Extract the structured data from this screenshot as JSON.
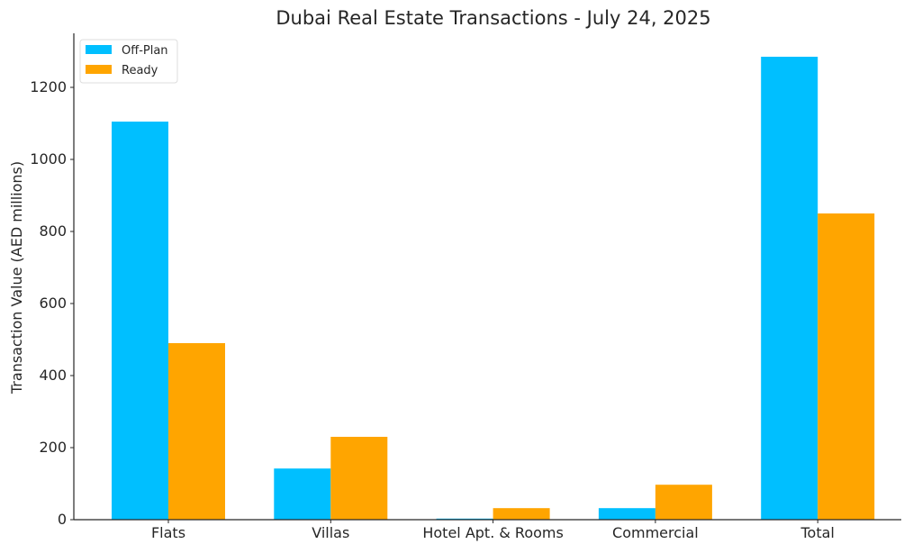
{
  "chart_data": {
    "type": "bar",
    "title": "Dubai Real Estate Transactions - July 24, 2025",
    "xlabel": "",
    "ylabel": "Transaction Value (AED millions)",
    "categories": [
      "Flats",
      "Villas",
      "Hotel Apt. & Rooms",
      "Commercial",
      "Total"
    ],
    "series": [
      {
        "name": "Off-Plan",
        "color": "#00BFFF",
        "values": [
          1105,
          142,
          3,
          32,
          1285
        ]
      },
      {
        "name": "Ready",
        "color": "#FFA500",
        "values": [
          490,
          230,
          32,
          97,
          850
        ]
      }
    ],
    "ylim": [
      0,
      1340
    ],
    "yticks": [
      0,
      200,
      400,
      600,
      800,
      1000,
      1200
    ],
    "legend": "top-left",
    "grid": false
  }
}
